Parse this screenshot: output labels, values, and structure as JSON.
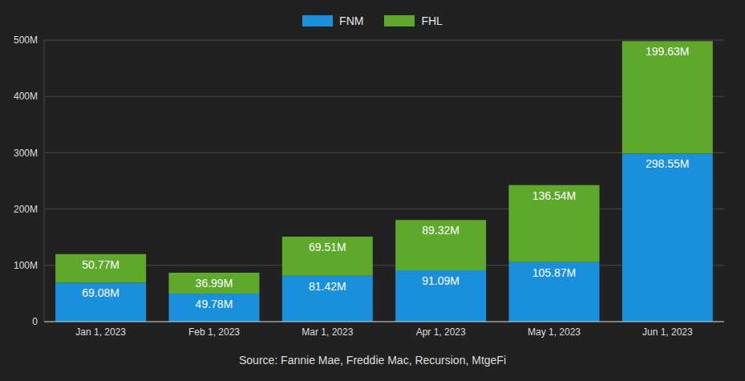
{
  "chart_data": {
    "type": "bar",
    "stacked": true,
    "grid": true,
    "data_labels": true,
    "legend": "top",
    "caption": "Source: Fannie Mae, Freddie Mac, Recursion, MtgeFi",
    "categories": [
      "Jan 1, 2023",
      "Feb 1, 2023",
      "Mar 1, 2023",
      "Apr 1, 2023",
      "May 1, 2023",
      "Jun 1, 2023"
    ],
    "series": [
      {
        "name": "FNM",
        "color": "#1a8fdc",
        "values": [
          69.08,
          49.78,
          81.42,
          91.09,
          105.87,
          298.55
        ],
        "value_labels": [
          "69.08M",
          "49.78M",
          "81.42M",
          "91.09M",
          "105.87M",
          "298.55M"
        ]
      },
      {
        "name": "FHL",
        "color": "#5ea82b",
        "values": [
          50.77,
          36.99,
          69.51,
          89.32,
          136.54,
          199.63
        ],
        "value_labels": [
          "50.77M",
          "36.99M",
          "69.51M",
          "89.32M",
          "136.54M",
          "199.63M"
        ]
      }
    ],
    "ylim": [
      0,
      500
    ],
    "yticks": [
      {
        "value": 0,
        "label": "0"
      },
      {
        "value": 100,
        "label": "100M"
      },
      {
        "value": 200,
        "label": "200M"
      },
      {
        "value": 300,
        "label": "300M"
      },
      {
        "value": 400,
        "label": "400M"
      },
      {
        "value": 500,
        "label": "500M"
      }
    ]
  }
}
